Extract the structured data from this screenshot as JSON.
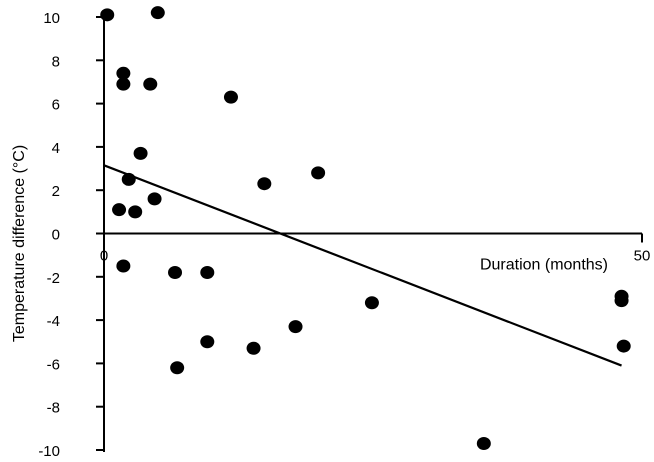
{
  "chart_data": {
    "type": "scatter",
    "title": "",
    "xlabel": "Duration (months)",
    "ylabel": "Temperature difference (°C)",
    "xlim": [
      0,
      50
    ],
    "ylim": [
      -10,
      10
    ],
    "x_ticks": [
      0,
      50
    ],
    "y_ticks": [
      10,
      8,
      6,
      4,
      2,
      0,
      -2,
      -4,
      -6,
      -8,
      -10
    ],
    "grid": false,
    "legend": "none",
    "colors": {
      "points": "#000000",
      "axes": "#000000"
    },
    "series": [
      {
        "points": [
          {
            "x": 0.3,
            "y": 10.1
          },
          {
            "x": 5.0,
            "y": 10.2
          },
          {
            "x": 1.8,
            "y": 7.4
          },
          {
            "x": 1.8,
            "y": 6.9
          },
          {
            "x": 4.3,
            "y": 6.9
          },
          {
            "x": 11.8,
            "y": 6.3
          },
          {
            "x": 3.4,
            "y": 3.7
          },
          {
            "x": 2.3,
            "y": 2.5
          },
          {
            "x": 14.9,
            "y": 2.3
          },
          {
            "x": 19.9,
            "y": 2.8
          },
          {
            "x": 4.7,
            "y": 1.6
          },
          {
            "x": 1.4,
            "y": 1.1
          },
          {
            "x": 2.9,
            "y": 1.0
          },
          {
            "x": 1.8,
            "y": -1.5
          },
          {
            "x": 6.6,
            "y": -1.8
          },
          {
            "x": 9.6,
            "y": -1.8
          },
          {
            "x": 24.9,
            "y": -3.2
          },
          {
            "x": 17.8,
            "y": -4.3
          },
          {
            "x": 9.6,
            "y": -5.0
          },
          {
            "x": 13.9,
            "y": -5.3
          },
          {
            "x": 6.8,
            "y": -6.2
          },
          {
            "x": 35.3,
            "y": -9.7
          },
          {
            "x": 48.1,
            "y": -2.9
          },
          {
            "x": 48.1,
            "y": -3.1
          },
          {
            "x": 48.3,
            "y": -5.2
          }
        ]
      }
    ],
    "trendline": {
      "x": [
        0,
        48.1
      ],
      "y": [
        3.15,
        -6.1
      ]
    }
  }
}
